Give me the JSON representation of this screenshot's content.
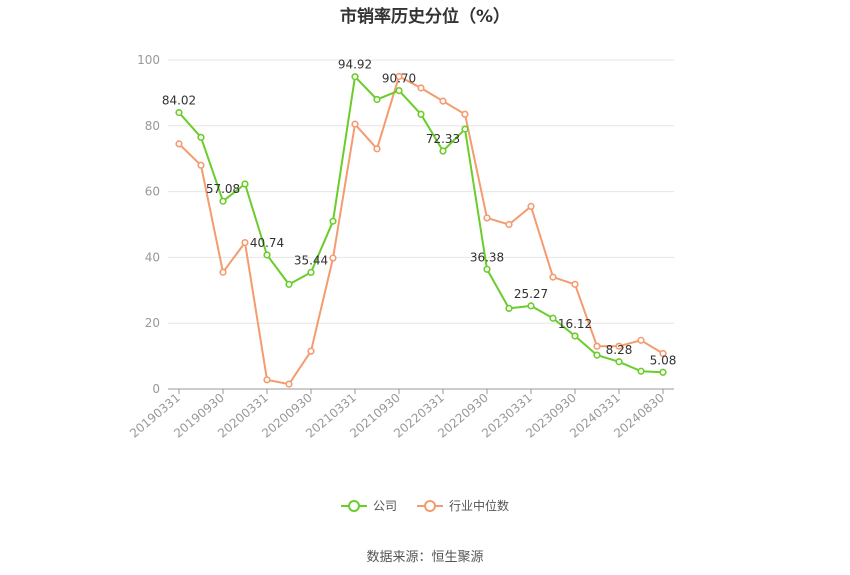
{
  "colors": {
    "company": "#6acd2b",
    "industry": "#f49b6f",
    "grid": "#e6e6e6",
    "axis": "#999999",
    "tick_text": "#999999",
    "label_text": "#333333"
  },
  "legend": {
    "company_label": "公司",
    "industry_label": "行业中位数"
  },
  "source": "数据来源：恒生聚源",
  "chart_data": {
    "type": "line",
    "title": "市销率历史分位（%）",
    "ylim": [
      0,
      100
    ],
    "yticks": [
      0,
      20,
      40,
      60,
      80,
      100
    ],
    "grid": true,
    "legend_position": "bottom",
    "x": [
      "20190331",
      "20190630",
      "20190930",
      "20191231",
      "20200331",
      "20200630",
      "20200930",
      "20201231",
      "20210331",
      "20210630",
      "20210930",
      "20211231",
      "20220331",
      "20220630",
      "20220930",
      "20221231",
      "20230331",
      "20230630",
      "20230930",
      "20231231",
      "20240331",
      "20240630",
      "20240830"
    ],
    "xtick_labels": [
      "20190331",
      "20190930",
      "20200331",
      "20200930",
      "20210331",
      "20210930",
      "20220331",
      "20220930",
      "20230331",
      "20230930",
      "20240331",
      "20240830"
    ],
    "series": [
      {
        "name": "公司",
        "values": [
          84.02,
          76.5,
          57.08,
          62.3,
          40.74,
          31.8,
          35.44,
          51.0,
          94.92,
          88.0,
          90.7,
          83.5,
          72.33,
          79.0,
          36.38,
          24.5,
          25.27,
          21.5,
          16.12,
          10.3,
          8.28,
          5.4,
          5.08
        ],
        "labels": {
          "0": "84.02",
          "2": "57.08",
          "4": "40.74",
          "6": "35.44",
          "8": "94.92",
          "10": "90.70",
          "12": "72.33",
          "14": "36.38",
          "16": "25.27",
          "18": "16.12",
          "20": "8.28",
          "22": "5.08"
        }
      },
      {
        "name": "行业中位数",
        "values": [
          74.5,
          68.0,
          35.5,
          44.5,
          2.8,
          1.5,
          11.5,
          39.8,
          80.5,
          73.0,
          95.0,
          91.5,
          87.5,
          83.5,
          52.0,
          50.0,
          55.5,
          34.0,
          31.8,
          13.0,
          13.0,
          14.8,
          10.8
        ]
      }
    ]
  }
}
